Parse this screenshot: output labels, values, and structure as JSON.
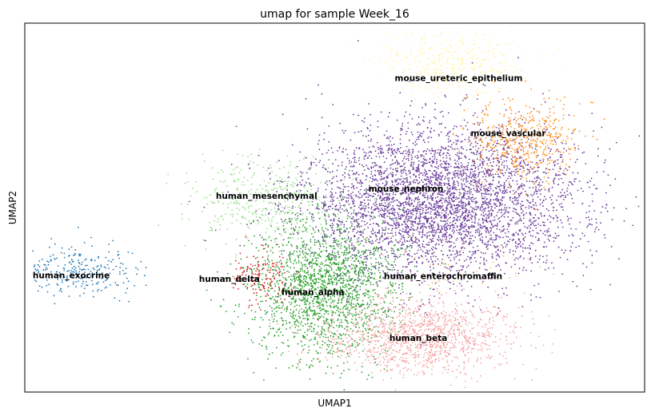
{
  "chart_data": {
    "type": "scatter",
    "title": "umap for sample Week_16",
    "xlabel": "UMAP1",
    "ylabel": "UMAP2",
    "xticks": [],
    "yticks": [],
    "grid": false,
    "legend": "on data",
    "xlim": [
      0,
      100
    ],
    "ylim": [
      0,
      100
    ],
    "clusters": [
      {
        "name": "human_exocrine",
        "color": "#1f77b4",
        "center": [
          8.5,
          32.5
        ],
        "spread": [
          4.5,
          3.5
        ],
        "count": 260,
        "label_pos": [
          7.5,
          31.5
        ]
      },
      {
        "name": "human_delta",
        "color": "#d62728",
        "center": [
          38.5,
          31
        ],
        "spread": [
          2.5,
          3.6
        ],
        "count": 170,
        "label_pos": [
          33.0,
          30.5
        ]
      },
      {
        "name": "human_mesenchymal",
        "color": "#98df8a",
        "center": [
          39,
          51.5
        ],
        "spread": [
          6.0,
          6.0
        ],
        "count": 420,
        "label_pos": [
          39.0,
          53.0
        ]
      },
      {
        "name": "human_alpha",
        "color": "#2ca02c",
        "center": [
          48.5,
          28
        ],
        "spread": [
          6.0,
          9.5
        ],
        "count": 1900,
        "label_pos": [
          46.5,
          27.0
        ]
      },
      {
        "name": "human_beta",
        "color": "#f4a6a6",
        "center": [
          64,
          15
        ],
        "spread": [
          7.5,
          5.2
        ],
        "count": 1300,
        "label_pos": [
          63.5,
          14.5
        ]
      },
      {
        "name": "human_enterochromaffin",
        "color": "#fdbf6f",
        "center": [
          68,
          34
        ],
        "spread": [
          7.0,
          3.5
        ],
        "count": 55,
        "label_pos": [
          67.5,
          31.3
        ]
      },
      {
        "name": "mouse_nephron",
        "color": "#6a3d9a",
        "center": [
          67,
          52
        ],
        "spread": [
          11.0,
          10.5
        ],
        "count": 4200,
        "label_pos": [
          61.5,
          55.0
        ]
      },
      {
        "name": "mouse_vascular",
        "color": "#ff8c1a",
        "center": [
          80.5,
          68
        ],
        "spread": [
          4.5,
          5.5
        ],
        "count": 480,
        "label_pos": [
          78.0,
          70.0
        ]
      },
      {
        "name": "mouse_ureteric_epithelium",
        "color": "#fff3a8",
        "center": [
          69.5,
          89
        ],
        "spread": [
          5.5,
          4.5
        ],
        "count": 380,
        "label_pos": [
          70.0,
          85.0
        ]
      }
    ]
  }
}
